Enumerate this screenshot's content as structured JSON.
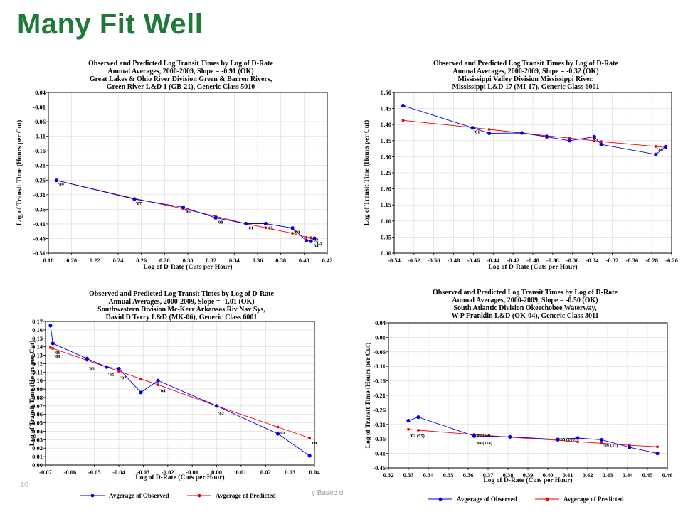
{
  "slide": {
    "title": "Many Fit Well",
    "footer_left": "10",
    "footer_mid": "y Based o"
  },
  "colors": {
    "title_green": "#1f7a3a",
    "observed": "#0000ee",
    "predicted": "#ee0000"
  },
  "chart_data": [
    {
      "type": "line",
      "title_lines": [
        "Observed and Predicted Log Transit Times by Log of D-Rate",
        "Annual Averages, 2000-2009, Slope = -0.91 (OK)",
        "Great Lakes & Ohio River Division Green & Barren Rivers,",
        "Green River L&D 1 (GB-21), Generic Class 5010"
      ],
      "xlabel": "Log of D-Rate (Cuts per Hour)",
      "ylabel": "Log of Transit Time (Hours per Cut)",
      "xlim": [
        0.18,
        0.42
      ],
      "ylim": [
        -0.51,
        0.04
      ],
      "xticks": [
        "0.18",
        "0.20",
        "0.22",
        "0.24",
        "0.26",
        "0.28",
        "0.30",
        "0.32",
        "0.34",
        "0.36",
        "0.38",
        "0.40",
        "0.42"
      ],
      "yticks": [
        "0.04",
        "-0.01",
        "-0.06",
        "-0.11",
        "-0.16",
        "-0.21",
        "-0.26",
        "-0.31",
        "-0.36",
        "-0.41",
        "-0.46",
        "-0.51"
      ],
      "grid": true,
      "legend": "none",
      "series": [
        {
          "name": "Avgerage of Observed",
          "color": "#0000ee",
          "x": [
            0.187,
            0.254,
            0.296,
            0.324,
            0.35,
            0.367,
            0.39,
            0.402,
            0.406,
            0.409
          ],
          "y": [
            -0.261,
            -0.325,
            -0.353,
            -0.389,
            -0.409,
            -0.409,
            -0.424,
            -0.467,
            -0.469,
            -0.459
          ]
        },
        {
          "name": "Avgerage of Predicted",
          "color": "#ee0000",
          "x": [
            0.187,
            0.254,
            0.296,
            0.324,
            0.35,
            0.367,
            0.39,
            0.402,
            0.406,
            0.409
          ],
          "y": [
            -0.261,
            -0.323,
            -0.358,
            -0.384,
            -0.409,
            -0.423,
            -0.442,
            -0.456,
            -0.457,
            -0.462
          ]
        }
      ],
      "point_labels": [
        {
          "text": "'09",
          "x": 0.187,
          "y": -0.261
        },
        {
          "text": "'07",
          "x": 0.254,
          "y": -0.325
        },
        {
          "text": "'06",
          "x": 0.296,
          "y": -0.353
        },
        {
          "text": "'08",
          "x": 0.324,
          "y": -0.389
        },
        {
          "text": "'01",
          "x": 0.35,
          "y": -0.409
        },
        {
          "text": "'05",
          "x": 0.367,
          "y": -0.409
        },
        {
          "text": "'00",
          "x": 0.39,
          "y": -0.424
        },
        {
          "text": "'02",
          "x": 0.406,
          "y": -0.45
        },
        {
          "text": "'03",
          "x": 0.409,
          "y": -0.461
        },
        {
          "text": "'04",
          "x": 0.406,
          "y": -0.47
        }
      ]
    },
    {
      "type": "line",
      "title_lines": [
        "Observed and Predicted Log Transit Times by Log of D-Rate",
        "Annual Averages, 2000-2009, Slope = -0.32 (OK)",
        "Mississippi Valley Division Mississippi River,",
        "Mississippi L&D 17 (MI-17), Generic Class 6001"
      ],
      "xlabel": "Log of D-Rate (Cuts per Hour)",
      "ylabel": "Log of Transit Time (Hours per Cut)",
      "xlim": [
        -0.54,
        -0.26
      ],
      "ylim": [
        0.0,
        0.5
      ],
      "xticks": [
        "-0.54",
        "-0.52",
        "-0.50",
        "-0.48",
        "-0.46",
        "-0.44",
        "-0.42",
        "-0.40",
        "-0.38",
        "-0.36",
        "-0.34",
        "-0.32",
        "-0.30",
        "-0.28",
        "-0.26"
      ],
      "yticks": [
        "0.50",
        "0.45",
        "0.40",
        "0.35",
        "0.30",
        "0.25",
        "0.20",
        "0.15",
        "0.10",
        "0.05",
        "0.00"
      ],
      "grid": true,
      "legend": "none",
      "series": [
        {
          "name": "Avgerage of Observed",
          "color": "#0000ee",
          "x": [
            -0.531,
            -0.461,
            -0.444,
            -0.411,
            -0.386,
            -0.363,
            -0.338,
            -0.331,
            -0.276,
            -0.266
          ],
          "y": [
            0.459,
            0.39,
            0.373,
            0.374,
            0.362,
            0.35,
            0.362,
            0.338,
            0.307,
            0.331
          ]
        },
        {
          "name": "Avgerage of Predicted",
          "color": "#ee0000",
          "x": [
            -0.531,
            -0.461,
            -0.444,
            -0.411,
            -0.386,
            -0.363,
            -0.338,
            -0.331,
            -0.276,
            -0.266
          ],
          "y": [
            0.413,
            0.391,
            0.385,
            0.374,
            0.365,
            0.358,
            0.35,
            0.347,
            0.332,
            0.329
          ]
        }
      ],
      "point_labels": [
        {
          "text": "'01",
          "x": -0.461,
          "y": 0.39
        },
        {
          "text": "'09",
          "x": -0.276,
          "y": 0.335
        }
      ]
    },
    {
      "type": "line",
      "title_lines": [
        "Observed and Predicted Log Transit Times by Log of D-Rate",
        "Annual Averages, 2000-2009, Slope = -1.01 (OK)",
        "Southwestern Division Mc-Kerr Arkansas Riv Nav Sys,",
        "David D Terry L&D (MK-06), Generic Class 6001"
      ],
      "xlabel": "Log of D-Rate (Cuts per Hour)",
      "ylabel": "Log of Transit Time (Hours per Cut)",
      "xlim": [
        -0.07,
        0.04
      ],
      "ylim": [
        0.0,
        0.17
      ],
      "xticks": [
        "-0.07",
        "-0.06",
        "-0.05",
        "-0.04",
        "-0.03",
        "-0.02",
        "-0.01",
        "0.00",
        "0.01",
        "0.02",
        "0.03",
        "0.04"
      ],
      "yticks": [
        "0.17",
        "0.16",
        "0.15",
        "0.14",
        "0.13",
        "0.12",
        "0.11",
        "0.10",
        "0.09",
        "0.08",
        "0.07",
        "0.06",
        "0.05",
        "0.04",
        "0.03",
        "0.02",
        "0.01",
        "0.00"
      ],
      "grid": true,
      "legend": "bottom",
      "series": [
        {
          "name": "Avgerage of Observed",
          "color": "#0000ee",
          "x": [
            -0.068,
            -0.067,
            -0.053,
            -0.045,
            -0.04,
            -0.031,
            -0.024,
            0.0,
            0.025,
            0.038
          ],
          "y": [
            0.165,
            0.144,
            0.126,
            0.116,
            0.114,
            0.086,
            0.1,
            0.07,
            0.037,
            0.011
          ]
        },
        {
          "name": "Avgerage of Predicted",
          "color": "#ee0000",
          "x": [
            -0.068,
            -0.067,
            -0.053,
            -0.045,
            -0.04,
            -0.031,
            -0.024,
            0.0,
            0.025,
            0.038
          ],
          "y": [
            0.139,
            0.138,
            0.124,
            0.116,
            0.111,
            0.102,
            0.095,
            0.07,
            0.045,
            0.032
          ]
        }
      ],
      "point_labels": [
        {
          "text": "'06",
          "x": -0.067,
          "y": 0.138
        },
        {
          "text": "'09",
          "x": -0.067,
          "y": 0.134
        },
        {
          "text": "'03",
          "x": -0.053,
          "y": 0.119
        },
        {
          "text": "'05",
          "x": -0.045,
          "y": 0.112
        },
        {
          "text": "'07",
          "x": -0.04,
          "y": 0.108
        },
        {
          "text": "'04",
          "x": -0.024,
          "y": 0.093
        },
        {
          "text": "'02",
          "x": 0.0,
          "y": 0.066
        },
        {
          "text": "'01",
          "x": 0.025,
          "y": 0.043
        },
        {
          "text": "'00",
          "x": 0.038,
          "y": 0.031
        }
      ],
      "legend_entries": [
        "Avgerage of Observed",
        "Avgerage of Predicted"
      ]
    },
    {
      "type": "line",
      "title_lines": [
        "Observed and Predicted Log Transit Times by Log of D-Rate",
        "Annual Averages, 2000-2009, Slope = -0.50 (OK)",
        "South Atlantic Division Okeechobee Waterway,",
        "W P Franklin L&D (OK-04), Generic Class 3011"
      ],
      "xlabel": "Log of D-Rate (Cuts per Hour)",
      "ylabel": "Log of Transit Time (Hours per Cut)",
      "xlim": [
        0.32,
        0.46
      ],
      "ylim": [
        -0.46,
        0.04
      ],
      "xticks": [
        "0.32",
        "0.33",
        "0.34",
        "0.35",
        "0.36",
        "0.37",
        "0.38",
        "0.39",
        "0.40",
        "0.41",
        "0.42",
        "0.43",
        "0.44",
        "0.45",
        "0.46"
      ],
      "yticks": [
        "0.04",
        "-0.01",
        "-0.06",
        "-0.11",
        "-0.16",
        "-0.21",
        "-0.26",
        "-0.31",
        "-0.36",
        "-0.41",
        "-0.46"
      ],
      "grid": true,
      "legend": "bottom",
      "series": [
        {
          "name": "Avgerage of Observed",
          "color": "#0000ee",
          "x": [
            0.33,
            0.335,
            0.363,
            0.381,
            0.405,
            0.415,
            0.427,
            0.441,
            0.455
          ],
          "y": [
            -0.297,
            -0.285,
            -0.35,
            -0.353,
            -0.362,
            -0.357,
            -0.363,
            -0.389,
            -0.41
          ]
        },
        {
          "name": "Avgerage of Predicted",
          "color": "#ee0000",
          "x": [
            0.33,
            0.335,
            0.363,
            0.381,
            0.405,
            0.415,
            0.427,
            0.441,
            0.455
          ],
          "y": [
            -0.327,
            -0.33,
            -0.345,
            -0.354,
            -0.365,
            -0.37,
            -0.375,
            -0.382,
            -0.387
          ]
        }
      ],
      "point_labels": [
        {
          "text": "'02 (55)",
          "x": 0.33,
          "y": -0.335
        },
        {
          "text": "'00 (60)",
          "x": 0.363,
          "y": -0.332
        },
        {
          "text": "'04 (114)",
          "x": 0.363,
          "y": -0.36
        },
        {
          "text": "'05 (106)",
          "x": 0.405,
          "y": -0.347
        },
        {
          "text": "'09 (31)",
          "x": 0.427,
          "y": -0.368
        }
      ],
      "legend_entries": [
        "Avgerage of Observed",
        "Avgerage of Predicted"
      ]
    }
  ]
}
